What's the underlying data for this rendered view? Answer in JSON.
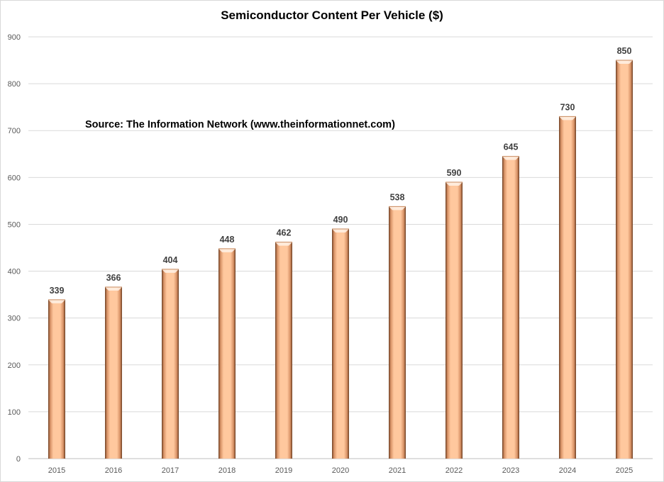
{
  "chart_data": {
    "type": "bar",
    "title": "Semiconductor Content Per Vehicle ($)",
    "annotation": "Source: The Information Network (www.theinformationnet.com)",
    "xlabel": "",
    "ylabel": "",
    "categories": [
      "2015",
      "2016",
      "2017",
      "2018",
      "2019",
      "2020",
      "2021",
      "2022",
      "2023",
      "2024",
      "2025"
    ],
    "values": [
      339,
      366,
      404,
      448,
      462,
      490,
      538,
      590,
      645,
      730,
      850
    ],
    "data_labels": [
      "339",
      "366",
      "404",
      "448",
      "462",
      "490",
      "538",
      "590",
      "645",
      "730",
      "850"
    ],
    "ylim": [
      0,
      900
    ],
    "yticks": [
      0,
      100,
      200,
      300,
      400,
      500,
      600,
      700,
      800,
      900
    ],
    "ytick_labels": [
      "0",
      "100",
      "200",
      "300",
      "400",
      "500",
      "600",
      "700",
      "800",
      "900"
    ],
    "grid": true,
    "legend": "none",
    "colors": {
      "bar_light": "#ffc89e",
      "bar_main": "#f9b182",
      "bar_dark": "#7a4a2a",
      "grid": "#d9d9d9",
      "axis": "#bfbfbf"
    }
  }
}
